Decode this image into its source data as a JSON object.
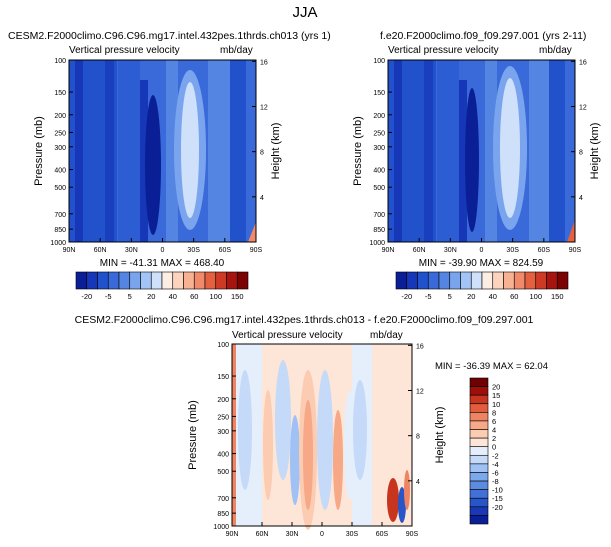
{
  "figure_title": "JJA",
  "colors": {
    "top_scale": [
      "#0a1f96",
      "#1537b8",
      "#2251cc",
      "#3a6ad9",
      "#5585e3",
      "#7aa5ee",
      "#a3c4f6",
      "#cfe0fb",
      "#fdeee3",
      "#fcd4bd",
      "#f7b193",
      "#f08a6a",
      "#e4603f",
      "#cf3a25",
      "#a8140f",
      "#7a0403"
    ],
    "diff_scale": [
      "#0a1f96",
      "#1838b5",
      "#2855c8",
      "#4170d6",
      "#5b8ce0",
      "#7ca8ec",
      "#9fc1f3",
      "#c4daf8",
      "#e5eefb",
      "#fde6d7",
      "#fbcbb2",
      "#f6a887",
      "#ee8463",
      "#e05d3e",
      "#c8351f",
      "#9e0f0c",
      "#6e0202"
    ]
  },
  "chart_data": [
    {
      "id": "panel_a",
      "type": "heatmap",
      "left_title": "CESM2.F2000climo.C96.C96.mg17.intel.432pes.1thrds.ch013 (yrs 1)",
      "subtitle": "Vertical pressure velocity",
      "units": "mb/day",
      "ylabel": "Pressure (mb)",
      "ylabel_right": "Height (km)",
      "xticks": [
        "90N",
        "60N",
        "30N",
        "0",
        "30S",
        "60S",
        "90S"
      ],
      "yticks": [
        "100",
        "150",
        "200",
        "250",
        "300",
        "400",
        "500",
        "700",
        "850",
        "1000"
      ],
      "yticks_right": [
        "16",
        "12",
        "8",
        "4"
      ],
      "stats": "MIN = -41.31   MAX = 468.40",
      "colorbar_labels": [
        "-20",
        "-5",
        "5",
        "20",
        "40",
        "60",
        "100",
        "150"
      ]
    },
    {
      "id": "panel_b",
      "type": "heatmap",
      "left_title": "f.e20.F2000climo.f09_f09.297.001 (yrs 2-11)",
      "subtitle": "Vertical pressure velocity",
      "units": "mb/day",
      "ylabel": "Pressure (mb)",
      "ylabel_right": "Height (km)",
      "xticks": [
        "90N",
        "60N",
        "30N",
        "0",
        "30S",
        "60S",
        "90S"
      ],
      "yticks": [
        "100",
        "150",
        "200",
        "250",
        "300",
        "400",
        "500",
        "700",
        "850",
        "1000"
      ],
      "yticks_right": [
        "16",
        "12",
        "8",
        "4"
      ],
      "stats": "MIN = -39.90   MAX = 824.59",
      "colorbar_labels": [
        "-20",
        "-5",
        "5",
        "20",
        "40",
        "60",
        "100",
        "150"
      ]
    },
    {
      "id": "panel_diff",
      "type": "heatmap",
      "left_title": "CESM2.F2000climo.C96.C96.mg17.intel.432pes.1thrds.ch013 - f.e20.F2000climo.f09_f09.297.001",
      "subtitle": "Vertical pressure velocity",
      "units": "mb/day",
      "ylabel": "Pressure (mb)",
      "ylabel_right": "Height (km)",
      "xticks": [
        "90N",
        "60N",
        "30N",
        "0",
        "30S",
        "60S",
        "90S"
      ],
      "yticks": [
        "100",
        "150",
        "200",
        "250",
        "300",
        "400",
        "500",
        "700",
        "850",
        "1000"
      ],
      "yticks_right": [
        "16",
        "12",
        "8",
        "4"
      ],
      "stats": "MIN = -36.39   MAX = 62.04",
      "colorbar_labels": [
        "20",
        "15",
        "10",
        "8",
        "6",
        "4",
        "2",
        "0",
        "-2",
        "-4",
        "-6",
        "-8",
        "-10",
        "-15",
        "-20"
      ]
    }
  ]
}
